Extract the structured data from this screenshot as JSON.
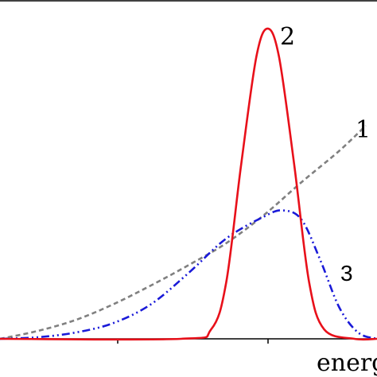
{
  "chart_data": {
    "type": "line",
    "xlabel": "energ",
    "grid": false,
    "legend": "none",
    "xlim": [
      0,
      1
    ],
    "ylim": [
      0,
      1
    ],
    "series": [
      {
        "name": "1",
        "color": "#808080",
        "style": "dashed",
        "points": [
          [
            0.0,
            0.0
          ],
          [
            0.1,
            0.025
          ],
          [
            0.2,
            0.06
          ],
          [
            0.3,
            0.11
          ],
          [
            0.4,
            0.17
          ],
          [
            0.5,
            0.235
          ],
          [
            0.6,
            0.305
          ],
          [
            0.7,
            0.395
          ],
          [
            0.8,
            0.5
          ],
          [
            0.9,
            0.6
          ],
          [
            0.97,
            0.68
          ]
        ]
      },
      {
        "name": "2",
        "color": "#e8101a",
        "style": "solid",
        "points": [
          [
            0.0,
            0.0
          ],
          [
            0.48,
            0.0
          ],
          [
            0.56,
            0.03
          ],
          [
            0.6,
            0.18
          ],
          [
            0.64,
            0.56
          ],
          [
            0.68,
            0.9
          ],
          [
            0.71,
            0.99
          ],
          [
            0.74,
            0.9
          ],
          [
            0.78,
            0.56
          ],
          [
            0.82,
            0.18
          ],
          [
            0.86,
            0.03
          ],
          [
            0.94,
            0.0
          ],
          [
            1.0,
            0.0
          ]
        ]
      },
      {
        "name": "3",
        "color": "#1a1ad8",
        "style": "dash-dot-dot",
        "points": [
          [
            0.0,
            0.0
          ],
          [
            0.1,
            0.005
          ],
          [
            0.2,
            0.02
          ],
          [
            0.3,
            0.05
          ],
          [
            0.4,
            0.11
          ],
          [
            0.5,
            0.21
          ],
          [
            0.6,
            0.32
          ],
          [
            0.7,
            0.39
          ],
          [
            0.75,
            0.41
          ],
          [
            0.8,
            0.38
          ],
          [
            0.85,
            0.25
          ],
          [
            0.9,
            0.1
          ],
          [
            0.95,
            0.02
          ],
          [
            1.0,
            0.0
          ]
        ]
      }
    ],
    "annotations": [
      "1",
      "2",
      "3"
    ]
  }
}
